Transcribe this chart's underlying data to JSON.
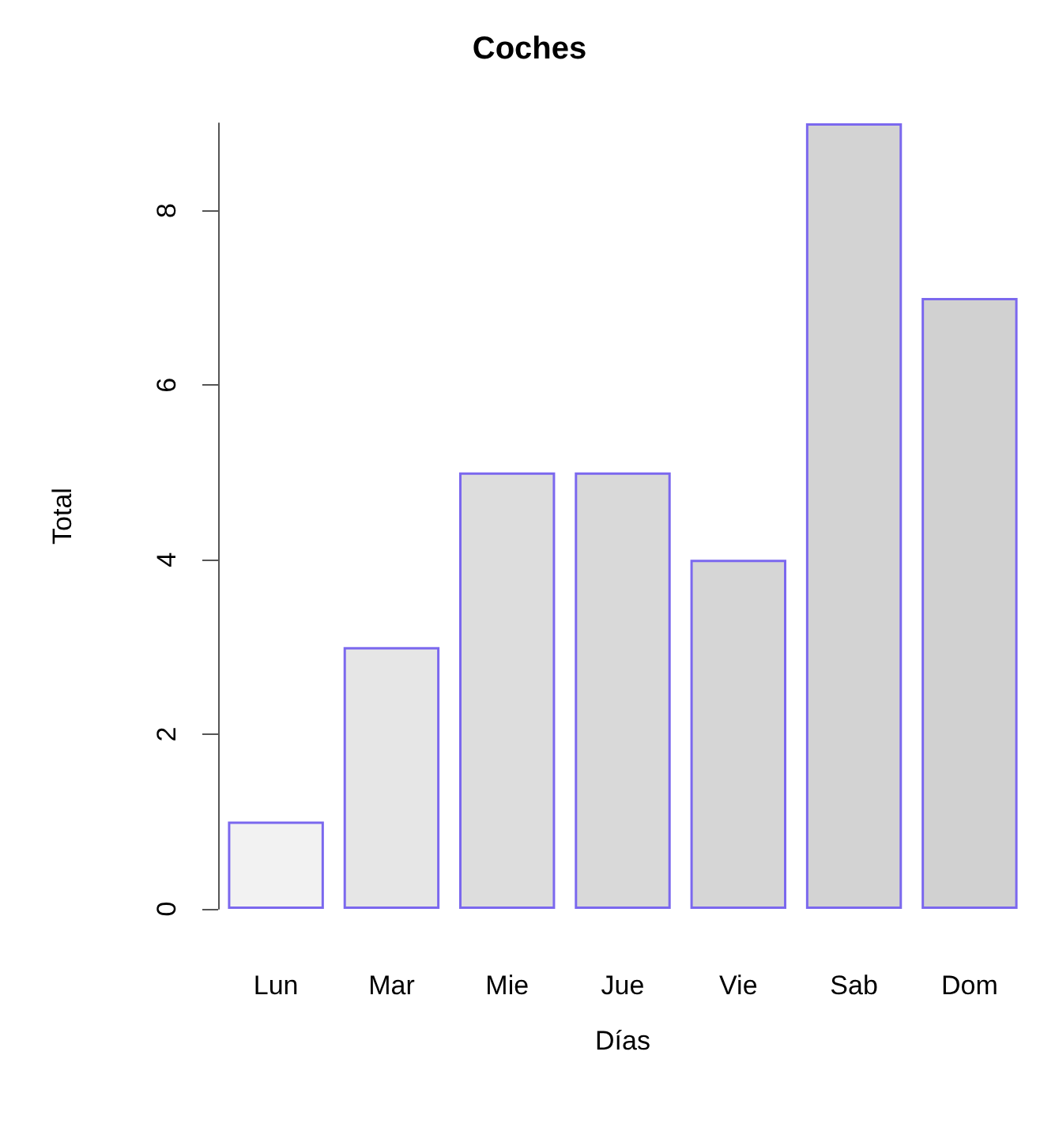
{
  "chart_data": {
    "type": "bar",
    "title": "Coches",
    "xlabel": "Días",
    "ylabel": "Total",
    "categories": [
      "Lun",
      "Mar",
      "Mie",
      "Jue",
      "Vie",
      "Sab",
      "Dom"
    ],
    "values": [
      1,
      3,
      5,
      5,
      4,
      9,
      7
    ],
    "colors": [
      "#f2f2f2",
      "#e6e6e6",
      "#dddddd",
      "#d9d9d9",
      "#d6d6d6",
      "#d3d3d3",
      "#d1d1d1"
    ],
    "ylim": [
      0,
      9
    ],
    "yticks": [
      0,
      2,
      4,
      6,
      8
    ],
    "grid": false
  }
}
